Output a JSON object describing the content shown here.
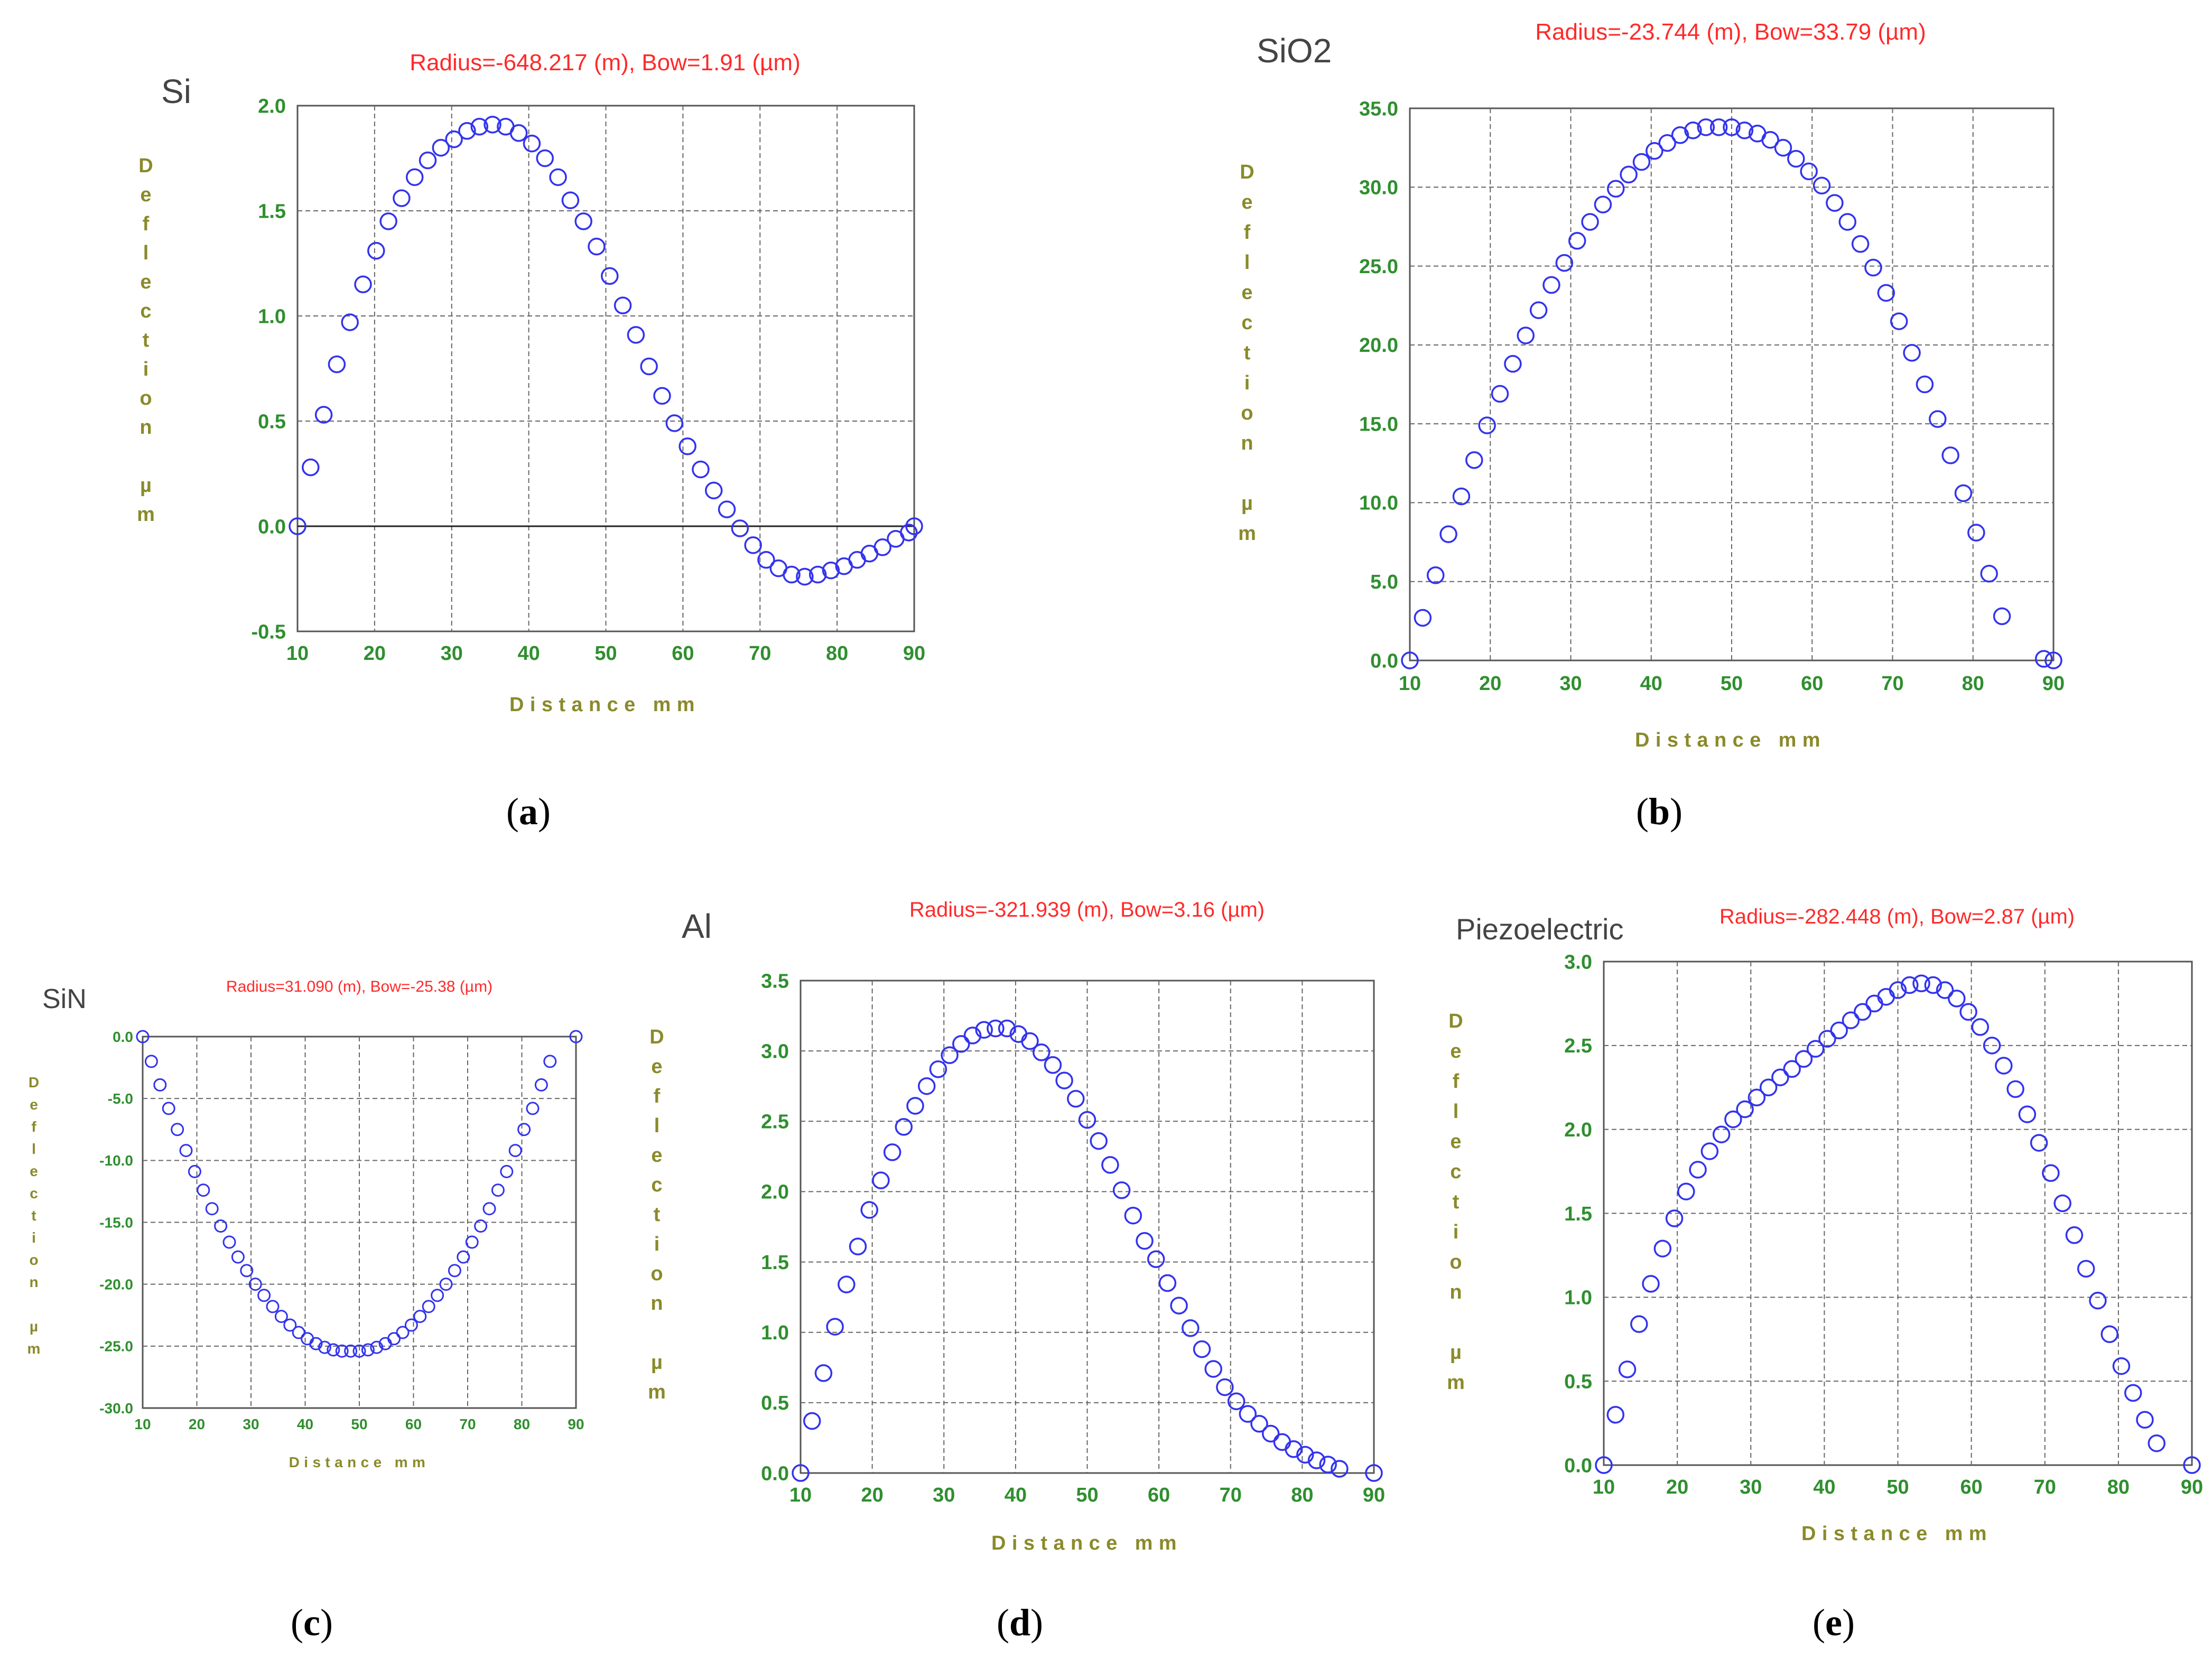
{
  "colors": {
    "marker": "#3333ee",
    "title": "#ff2a2a",
    "tick": "#2f8f2f",
    "axis_label": "#8a8a2a",
    "grid": "#666666",
    "frame": "#555555"
  },
  "chart_data": [
    {
      "id": "a",
      "type": "scatter",
      "panel_label": "Si",
      "title": "Radius=-648.217 (m), Bow=1.91 (µm)",
      "xlabel": "Distance mm",
      "ylabel": "Deflection µm",
      "caption": "(a)",
      "xlim": [
        10,
        90
      ],
      "ylim": [
        -0.5,
        2.0
      ],
      "xticks": [
        10,
        20,
        30,
        40,
        50,
        60,
        70,
        80,
        90
      ],
      "xtick_labels": [
        "10",
        "20",
        "30",
        "40",
        "50",
        "60",
        "70",
        "80",
        "90"
      ],
      "yticks": [
        -0.5,
        0.0,
        0.5,
        1.0,
        1.5,
        2.0
      ],
      "ytick_labels": [
        "-0.5",
        "0.0",
        "0.5",
        "1.0",
        "1.5",
        "2.0"
      ],
      "zero_line": true,
      "points": [
        [
          10,
          0.0
        ],
        [
          11.7,
          0.28
        ],
        [
          13.4,
          0.53
        ],
        [
          15.1,
          0.77
        ],
        [
          16.8,
          0.97
        ],
        [
          18.5,
          1.15
        ],
        [
          20.2,
          1.31
        ],
        [
          21.8,
          1.45
        ],
        [
          23.5,
          1.56
        ],
        [
          25.2,
          1.66
        ],
        [
          26.9,
          1.74
        ],
        [
          28.6,
          1.8
        ],
        [
          30.3,
          1.84
        ],
        [
          32,
          1.88
        ],
        [
          33.6,
          1.9
        ],
        [
          35.3,
          1.91
        ],
        [
          37,
          1.9
        ],
        [
          38.7,
          1.87
        ],
        [
          40.4,
          1.82
        ],
        [
          42.1,
          1.75
        ],
        [
          43.8,
          1.66
        ],
        [
          45.4,
          1.55
        ],
        [
          47.1,
          1.45
        ],
        [
          48.8,
          1.33
        ],
        [
          50.5,
          1.19
        ],
        [
          52.2,
          1.05
        ],
        [
          53.9,
          0.91
        ],
        [
          55.6,
          0.76
        ],
        [
          57.3,
          0.62
        ],
        [
          58.9,
          0.49
        ],
        [
          60.6,
          0.38
        ],
        [
          62.3,
          0.27
        ],
        [
          64,
          0.17
        ],
        [
          65.7,
          0.08
        ],
        [
          67.4,
          -0.01
        ],
        [
          69.1,
          -0.09
        ],
        [
          70.8,
          -0.16
        ],
        [
          72.4,
          -0.2
        ],
        [
          74.1,
          -0.23
        ],
        [
          75.8,
          -0.24
        ],
        [
          77.5,
          -0.23
        ],
        [
          79.2,
          -0.21
        ],
        [
          80.9,
          -0.19
        ],
        [
          82.6,
          -0.16
        ],
        [
          84.2,
          -0.13
        ],
        [
          85.9,
          -0.1
        ],
        [
          87.6,
          -0.06
        ],
        [
          89.3,
          -0.03
        ],
        [
          90,
          0.0
        ]
      ]
    },
    {
      "id": "b",
      "type": "scatter",
      "panel_label": "SiO2",
      "title": "Radius=-23.744 (m), Bow=33.79 (µm)",
      "xlabel": "Distance mm",
      "ylabel": "Deflection µm",
      "caption": "(b)",
      "xlim": [
        10,
        90
      ],
      "ylim": [
        0,
        35
      ],
      "xticks": [
        10,
        20,
        30,
        40,
        50,
        60,
        70,
        80,
        90
      ],
      "xtick_labels": [
        "10",
        "20",
        "30",
        "40",
        "50",
        "60",
        "70",
        "80",
        "90"
      ],
      "yticks": [
        0,
        5,
        10,
        15,
        20,
        25,
        30,
        35
      ],
      "ytick_labels": [
        "0.0",
        "5.0",
        "10.0",
        "15.0",
        "20.0",
        "25.0",
        "30.0",
        "35.0"
      ],
      "zero_line": false,
      "points": [
        [
          10,
          0.0
        ],
        [
          11.6,
          2.7
        ],
        [
          13.2,
          5.4
        ],
        [
          14.8,
          8.0
        ],
        [
          16.4,
          10.4
        ],
        [
          18,
          12.7
        ],
        [
          19.6,
          14.9
        ],
        [
          21.2,
          16.9
        ],
        [
          22.8,
          18.8
        ],
        [
          24.4,
          20.6
        ],
        [
          26,
          22.2
        ],
        [
          27.6,
          23.8
        ],
        [
          29.2,
          25.2
        ],
        [
          30.8,
          26.6
        ],
        [
          32.4,
          27.8
        ],
        [
          34,
          28.9
        ],
        [
          35.6,
          29.9
        ],
        [
          37.2,
          30.8
        ],
        [
          38.8,
          31.6
        ],
        [
          40.4,
          32.3
        ],
        [
          42,
          32.8
        ],
        [
          43.6,
          33.3
        ],
        [
          45.2,
          33.6
        ],
        [
          46.8,
          33.8
        ],
        [
          48.4,
          33.8
        ],
        [
          50,
          33.8
        ],
        [
          51.6,
          33.6
        ],
        [
          53.2,
          33.4
        ],
        [
          54.8,
          33.0
        ],
        [
          56.4,
          32.5
        ],
        [
          58,
          31.8
        ],
        [
          59.6,
          31.0
        ],
        [
          61.2,
          30.1
        ],
        [
          62.8,
          29.0
        ],
        [
          64.4,
          27.8
        ],
        [
          66,
          26.4
        ],
        [
          67.6,
          24.9
        ],
        [
          69.2,
          23.3
        ],
        [
          70.8,
          21.5
        ],
        [
          72.4,
          19.5
        ],
        [
          74,
          17.5
        ],
        [
          75.6,
          15.3
        ],
        [
          77.2,
          13.0
        ],
        [
          78.8,
          10.6
        ],
        [
          80.4,
          8.1
        ],
        [
          82,
          5.5
        ],
        [
          83.6,
          2.8
        ],
        [
          88.8,
          0.1
        ],
        [
          90,
          0.0
        ]
      ]
    },
    {
      "id": "c",
      "type": "scatter",
      "panel_label": "SiN",
      "title": "Radius=31.090 (m), Bow=-25.38 (µm)",
      "xlabel": "Distance mm",
      "ylabel": "Deflection µm",
      "caption": "(c)",
      "xlim": [
        10,
        90
      ],
      "ylim": [
        -30,
        0
      ],
      "xticks": [
        10,
        20,
        30,
        40,
        50,
        60,
        70,
        80,
        90
      ],
      "xtick_labels": [
        "10",
        "20",
        "30",
        "40",
        "50",
        "60",
        "70",
        "80",
        "90"
      ],
      "yticks": [
        -30,
        -25,
        -20,
        -15,
        -10,
        -5,
        0
      ],
      "ytick_labels": [
        "-30.0",
        "-25.0",
        "-20.0",
        "-15.0",
        "-10.0",
        "-5.0",
        "0.0"
      ],
      "zero_line": false,
      "points": [
        [
          10,
          0.0
        ],
        [
          11.6,
          -2.0
        ],
        [
          13.2,
          -3.9
        ],
        [
          14.8,
          -5.8
        ],
        [
          16.4,
          -7.5
        ],
        [
          18,
          -9.2
        ],
        [
          19.6,
          -10.9
        ],
        [
          21.2,
          -12.4
        ],
        [
          22.8,
          -13.9
        ],
        [
          24.4,
          -15.3
        ],
        [
          26,
          -16.6
        ],
        [
          27.6,
          -17.8
        ],
        [
          29.2,
          -18.9
        ],
        [
          30.8,
          -20.0
        ],
        [
          32.4,
          -20.9
        ],
        [
          34,
          -21.8
        ],
        [
          35.6,
          -22.6
        ],
        [
          37.2,
          -23.3
        ],
        [
          38.8,
          -23.9
        ],
        [
          40.4,
          -24.4
        ],
        [
          42,
          -24.8
        ],
        [
          43.6,
          -25.1
        ],
        [
          45.2,
          -25.3
        ],
        [
          46.8,
          -25.4
        ],
        [
          48.4,
          -25.4
        ],
        [
          50,
          -25.4
        ],
        [
          51.6,
          -25.3
        ],
        [
          53.2,
          -25.1
        ],
        [
          54.8,
          -24.8
        ],
        [
          56.4,
          -24.4
        ],
        [
          58,
          -23.9
        ],
        [
          59.6,
          -23.3
        ],
        [
          61.2,
          -22.6
        ],
        [
          62.8,
          -21.8
        ],
        [
          64.4,
          -20.9
        ],
        [
          66,
          -20.0
        ],
        [
          67.6,
          -18.9
        ],
        [
          69.2,
          -17.8
        ],
        [
          70.8,
          -16.6
        ],
        [
          72.4,
          -15.3
        ],
        [
          74,
          -13.9
        ],
        [
          75.6,
          -12.4
        ],
        [
          77.2,
          -10.9
        ],
        [
          78.8,
          -9.2
        ],
        [
          80.4,
          -7.5
        ],
        [
          82,
          -5.8
        ],
        [
          83.6,
          -3.9
        ],
        [
          85.2,
          -2.0
        ],
        [
          90,
          0.0
        ]
      ]
    },
    {
      "id": "d",
      "type": "scatter",
      "panel_label": "Al",
      "title": "Radius=-321.939 (m), Bow=3.16 (µm)",
      "xlabel": "Distance mm",
      "ylabel": "Deflection µm",
      "caption": "(d)",
      "xlim": [
        10,
        90
      ],
      "ylim": [
        0,
        3.5
      ],
      "xticks": [
        10,
        20,
        30,
        40,
        50,
        60,
        70,
        80,
        90
      ],
      "xtick_labels": [
        "10",
        "20",
        "30",
        "40",
        "50",
        "60",
        "70",
        "80",
        "90"
      ],
      "yticks": [
        0,
        0.5,
        1.0,
        1.5,
        2.0,
        2.5,
        3.0,
        3.5
      ],
      "ytick_labels": [
        "0.0",
        "0.5",
        "1.0",
        "1.5",
        "2.0",
        "2.5",
        "3.0",
        "3.5"
      ],
      "zero_line": false,
      "points": [
        [
          10,
          0.0
        ],
        [
          11.6,
          0.37
        ],
        [
          13.2,
          0.71
        ],
        [
          14.8,
          1.04
        ],
        [
          16.4,
          1.34
        ],
        [
          18,
          1.61
        ],
        [
          19.6,
          1.87
        ],
        [
          21.2,
          2.08
        ],
        [
          22.8,
          2.28
        ],
        [
          24.4,
          2.46
        ],
        [
          26,
          2.61
        ],
        [
          27.6,
          2.75
        ],
        [
          29.2,
          2.87
        ],
        [
          30.8,
          2.97
        ],
        [
          32.4,
          3.05
        ],
        [
          34,
          3.11
        ],
        [
          35.6,
          3.15
        ],
        [
          37.2,
          3.16
        ],
        [
          38.8,
          3.16
        ],
        [
          40.4,
          3.12
        ],
        [
          42,
          3.07
        ],
        [
          43.6,
          2.99
        ],
        [
          45.2,
          2.9
        ],
        [
          46.8,
          2.79
        ],
        [
          48.4,
          2.66
        ],
        [
          50,
          2.51
        ],
        [
          51.6,
          2.36
        ],
        [
          53.2,
          2.19
        ],
        [
          54.8,
          2.01
        ],
        [
          56.4,
          1.83
        ],
        [
          58,
          1.65
        ],
        [
          59.6,
          1.52
        ],
        [
          61.2,
          1.35
        ],
        [
          62.8,
          1.19
        ],
        [
          64.4,
          1.03
        ],
        [
          66,
          0.88
        ],
        [
          67.6,
          0.74
        ],
        [
          69.2,
          0.61
        ],
        [
          70.8,
          0.51
        ],
        [
          72.4,
          0.42
        ],
        [
          74,
          0.35
        ],
        [
          75.6,
          0.28
        ],
        [
          77.2,
          0.22
        ],
        [
          78.8,
          0.17
        ],
        [
          80.4,
          0.13
        ],
        [
          82,
          0.09
        ],
        [
          83.6,
          0.06
        ],
        [
          85.2,
          0.03
        ],
        [
          90,
          0.0
        ]
      ]
    },
    {
      "id": "e",
      "type": "scatter",
      "panel_label": "Piezoelectric",
      "title": "Radius=-282.448 (m), Bow=2.87 (µm)",
      "xlabel": "Distance mm",
      "ylabel": "Deflection µm",
      "caption": "(e)",
      "xlim": [
        10,
        90
      ],
      "ylim": [
        0,
        3.0
      ],
      "xticks": [
        10,
        20,
        30,
        40,
        50,
        60,
        70,
        80,
        90
      ],
      "xtick_labels": [
        "10",
        "20",
        "30",
        "40",
        "50",
        "60",
        "70",
        "80",
        "90"
      ],
      "yticks": [
        0,
        0.5,
        1.0,
        1.5,
        2.0,
        2.5,
        3.0
      ],
      "ytick_labels": [
        "0.0",
        "0.5",
        "1.0",
        "1.5",
        "2.0",
        "2.5",
        "3.0"
      ],
      "zero_line": false,
      "points": [
        [
          10,
          0.0
        ],
        [
          11.6,
          0.3
        ],
        [
          13.2,
          0.57
        ],
        [
          14.8,
          0.84
        ],
        [
          16.4,
          1.08
        ],
        [
          18,
          1.29
        ],
        [
          19.6,
          1.47
        ],
        [
          21.2,
          1.63
        ],
        [
          22.8,
          1.76
        ],
        [
          24.4,
          1.87
        ],
        [
          26,
          1.97
        ],
        [
          27.6,
          2.06
        ],
        [
          29.2,
          2.12
        ],
        [
          30.8,
          2.19
        ],
        [
          32.4,
          2.25
        ],
        [
          34,
          2.31
        ],
        [
          35.6,
          2.36
        ],
        [
          37.2,
          2.42
        ],
        [
          38.8,
          2.48
        ],
        [
          40.4,
          2.54
        ],
        [
          42,
          2.59
        ],
        [
          43.6,
          2.65
        ],
        [
          45.2,
          2.7
        ],
        [
          46.8,
          2.75
        ],
        [
          48.4,
          2.79
        ],
        [
          50,
          2.83
        ],
        [
          51.6,
          2.86
        ],
        [
          53.2,
          2.87
        ],
        [
          54.8,
          2.86
        ],
        [
          56.4,
          2.83
        ],
        [
          58,
          2.78
        ],
        [
          59.6,
          2.7
        ],
        [
          61.2,
          2.61
        ],
        [
          62.8,
          2.5
        ],
        [
          64.4,
          2.38
        ],
        [
          66,
          2.24
        ],
        [
          67.6,
          2.09
        ],
        [
          69.2,
          1.92
        ],
        [
          70.8,
          1.74
        ],
        [
          72.4,
          1.56
        ],
        [
          74,
          1.37
        ],
        [
          75.6,
          1.17
        ],
        [
          77.2,
          0.98
        ],
        [
          78.8,
          0.78
        ],
        [
          80.4,
          0.59
        ],
        [
          82,
          0.43
        ],
        [
          83.6,
          0.27
        ],
        [
          85.2,
          0.13
        ],
        [
          90,
          0.0
        ]
      ]
    }
  ]
}
